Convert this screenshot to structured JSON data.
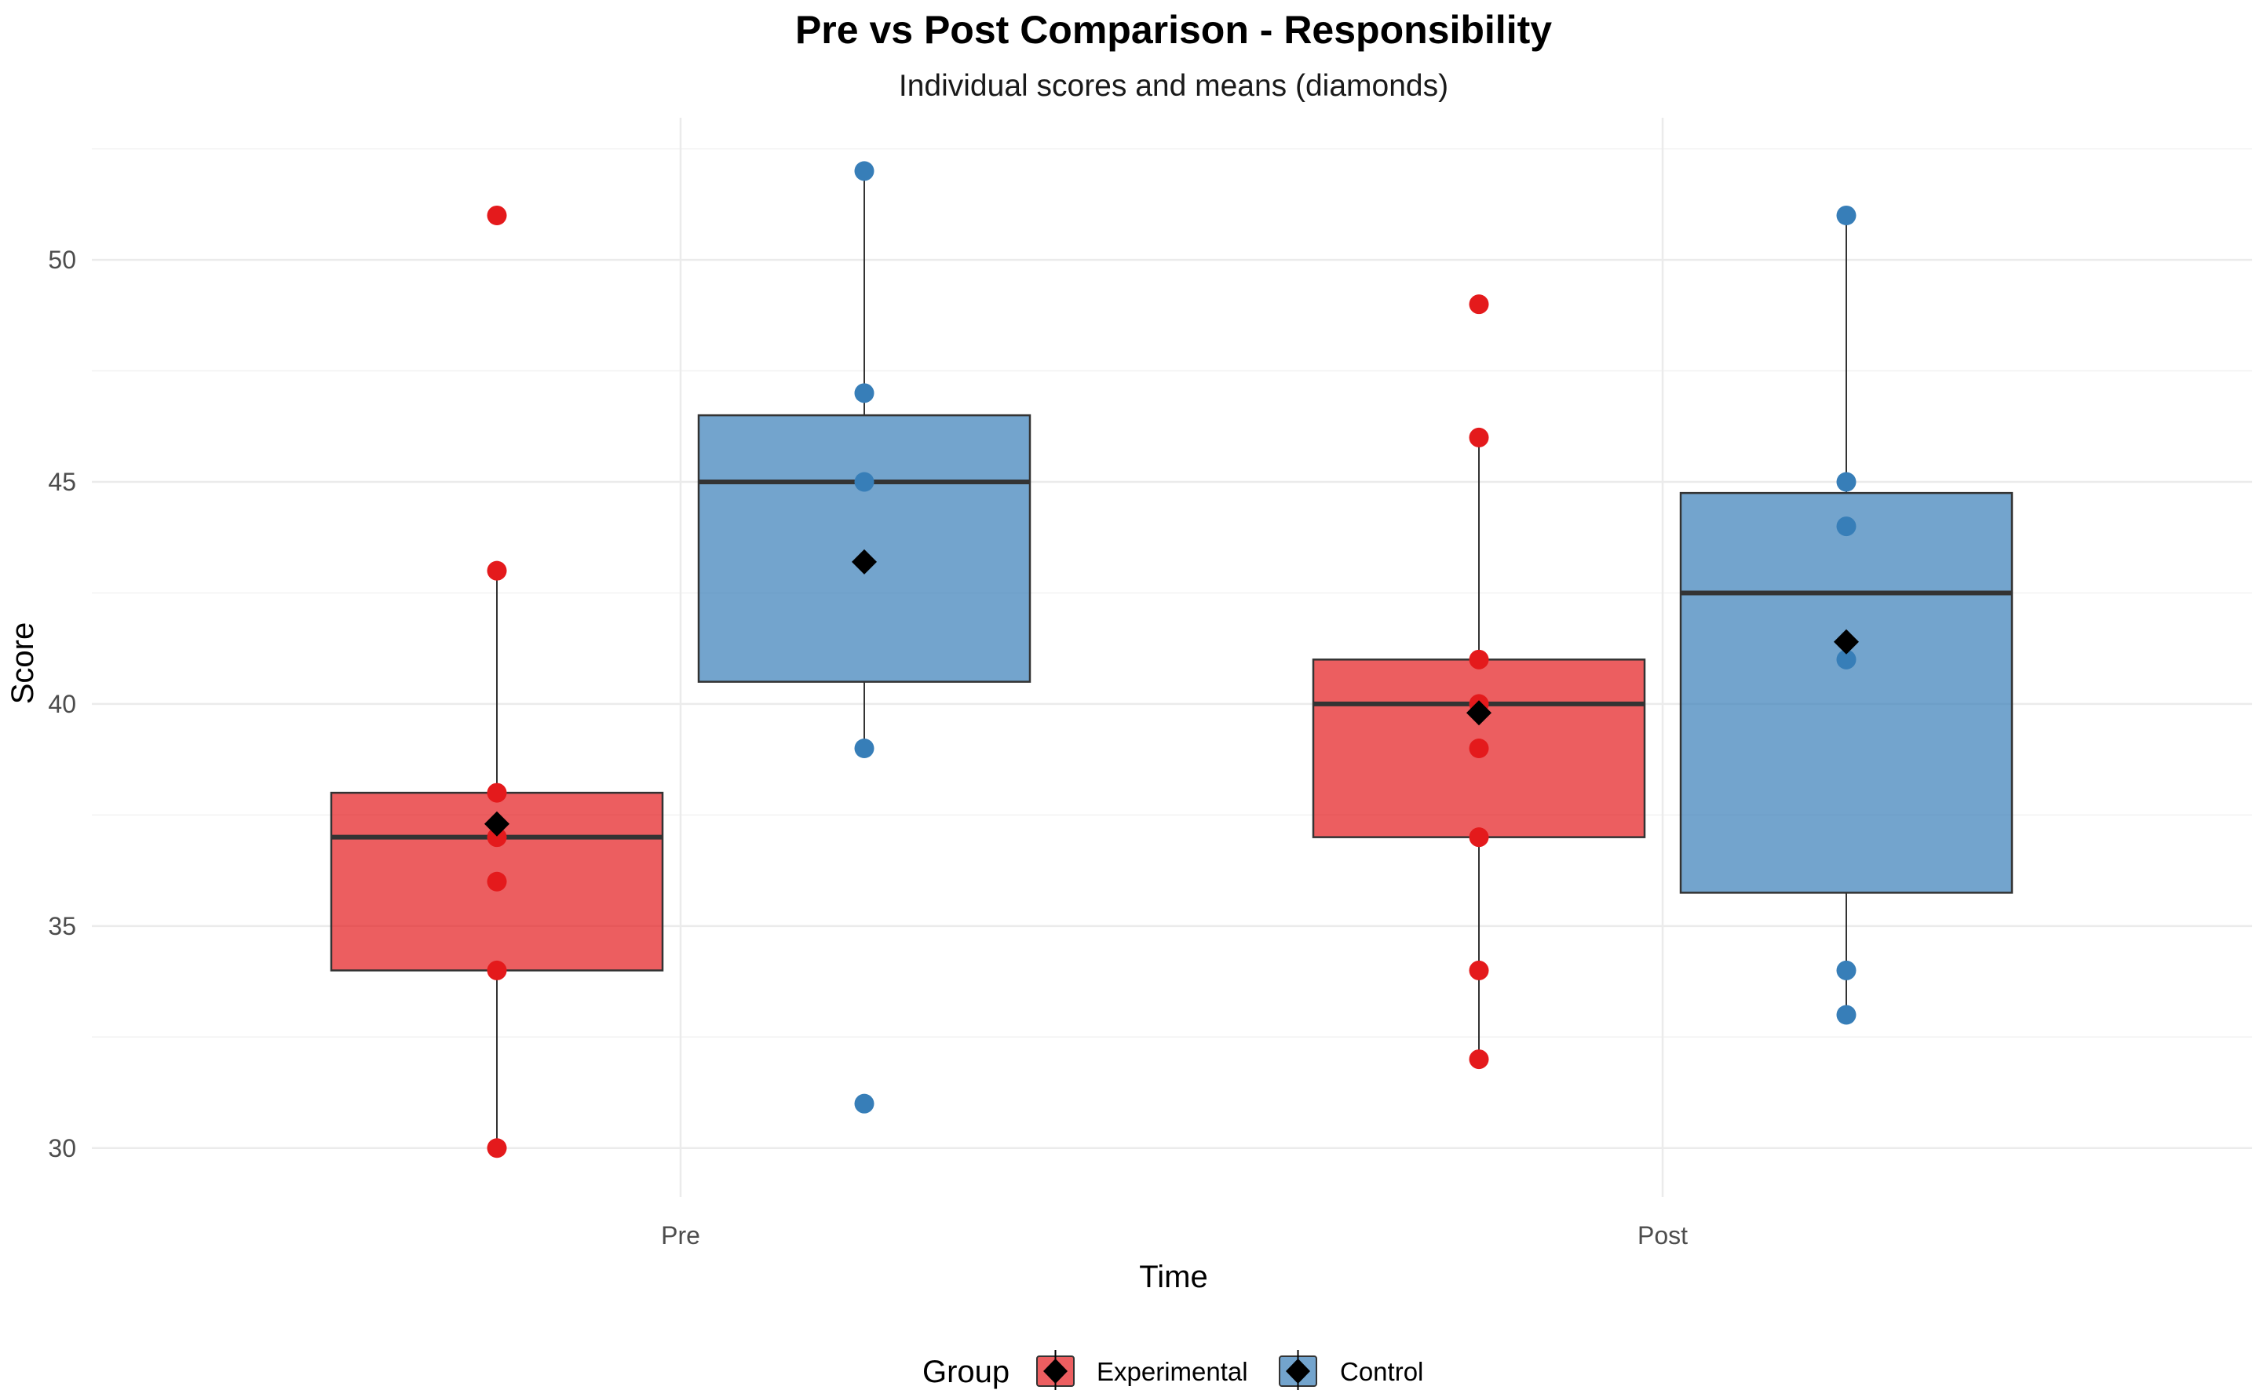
{
  "chart_data": {
    "type": "box",
    "title": "Pre vs Post Comparison - Responsibility",
    "subtitle": "Individual scores and means (diamonds)",
    "xlabel": "Time",
    "ylabel": "Score",
    "ylim": [
      28.9,
      53.2
    ],
    "yticks": [
      30,
      35,
      40,
      45,
      50
    ],
    "ytick_labels": [
      "30",
      "35",
      "40",
      "45",
      "50"
    ],
    "categories": [
      "Pre",
      "Post"
    ],
    "grid": true,
    "legend": {
      "title": "Group",
      "position": "bottom",
      "entries": [
        "Experimental",
        "Control"
      ]
    },
    "colors": {
      "Experimental_box": "#E41A1C",
      "Experimental_point": "#E41A1C",
      "Control_box": "#377EB8",
      "Control_point": "#377EB8",
      "mean_marker": "#000000",
      "median_line": "#333333",
      "grid_major": "#ebebeb",
      "grid_minor": "#f2f2f2"
    },
    "series": [
      {
        "name": "Experimental",
        "groups": [
          {
            "category": "Pre",
            "q1": 34,
            "median": 37,
            "q3": 38,
            "whisker_low": 30,
            "whisker_high": 43,
            "mean": 37.3,
            "points": [
              51,
              43,
              38,
              37,
              36,
              34,
              30
            ],
            "outliers": [
              51
            ]
          },
          {
            "category": "Post",
            "q1": 37,
            "median": 40,
            "q3": 41,
            "whisker_low": 32,
            "whisker_high": 46,
            "mean": 39.8,
            "points": [
              49,
              46,
              41,
              40,
              39,
              37,
              34,
              32
            ],
            "outliers": [
              49
            ]
          }
        ]
      },
      {
        "name": "Control",
        "groups": [
          {
            "category": "Pre",
            "q1": 40.5,
            "median": 45,
            "q3": 46.5,
            "whisker_low": 39,
            "whisker_high": 52,
            "mean": 43.2,
            "points": [
              52,
              47,
              45,
              39,
              31
            ],
            "outliers": [
              31
            ]
          },
          {
            "category": "Post",
            "q1": 35.75,
            "median": 42.5,
            "q3": 44.75,
            "whisker_low": 33,
            "whisker_high": 51,
            "mean": 41.4,
            "points": [
              51,
              45,
              44,
              41,
              34,
              33
            ],
            "outliers": []
          }
        ]
      }
    ]
  }
}
